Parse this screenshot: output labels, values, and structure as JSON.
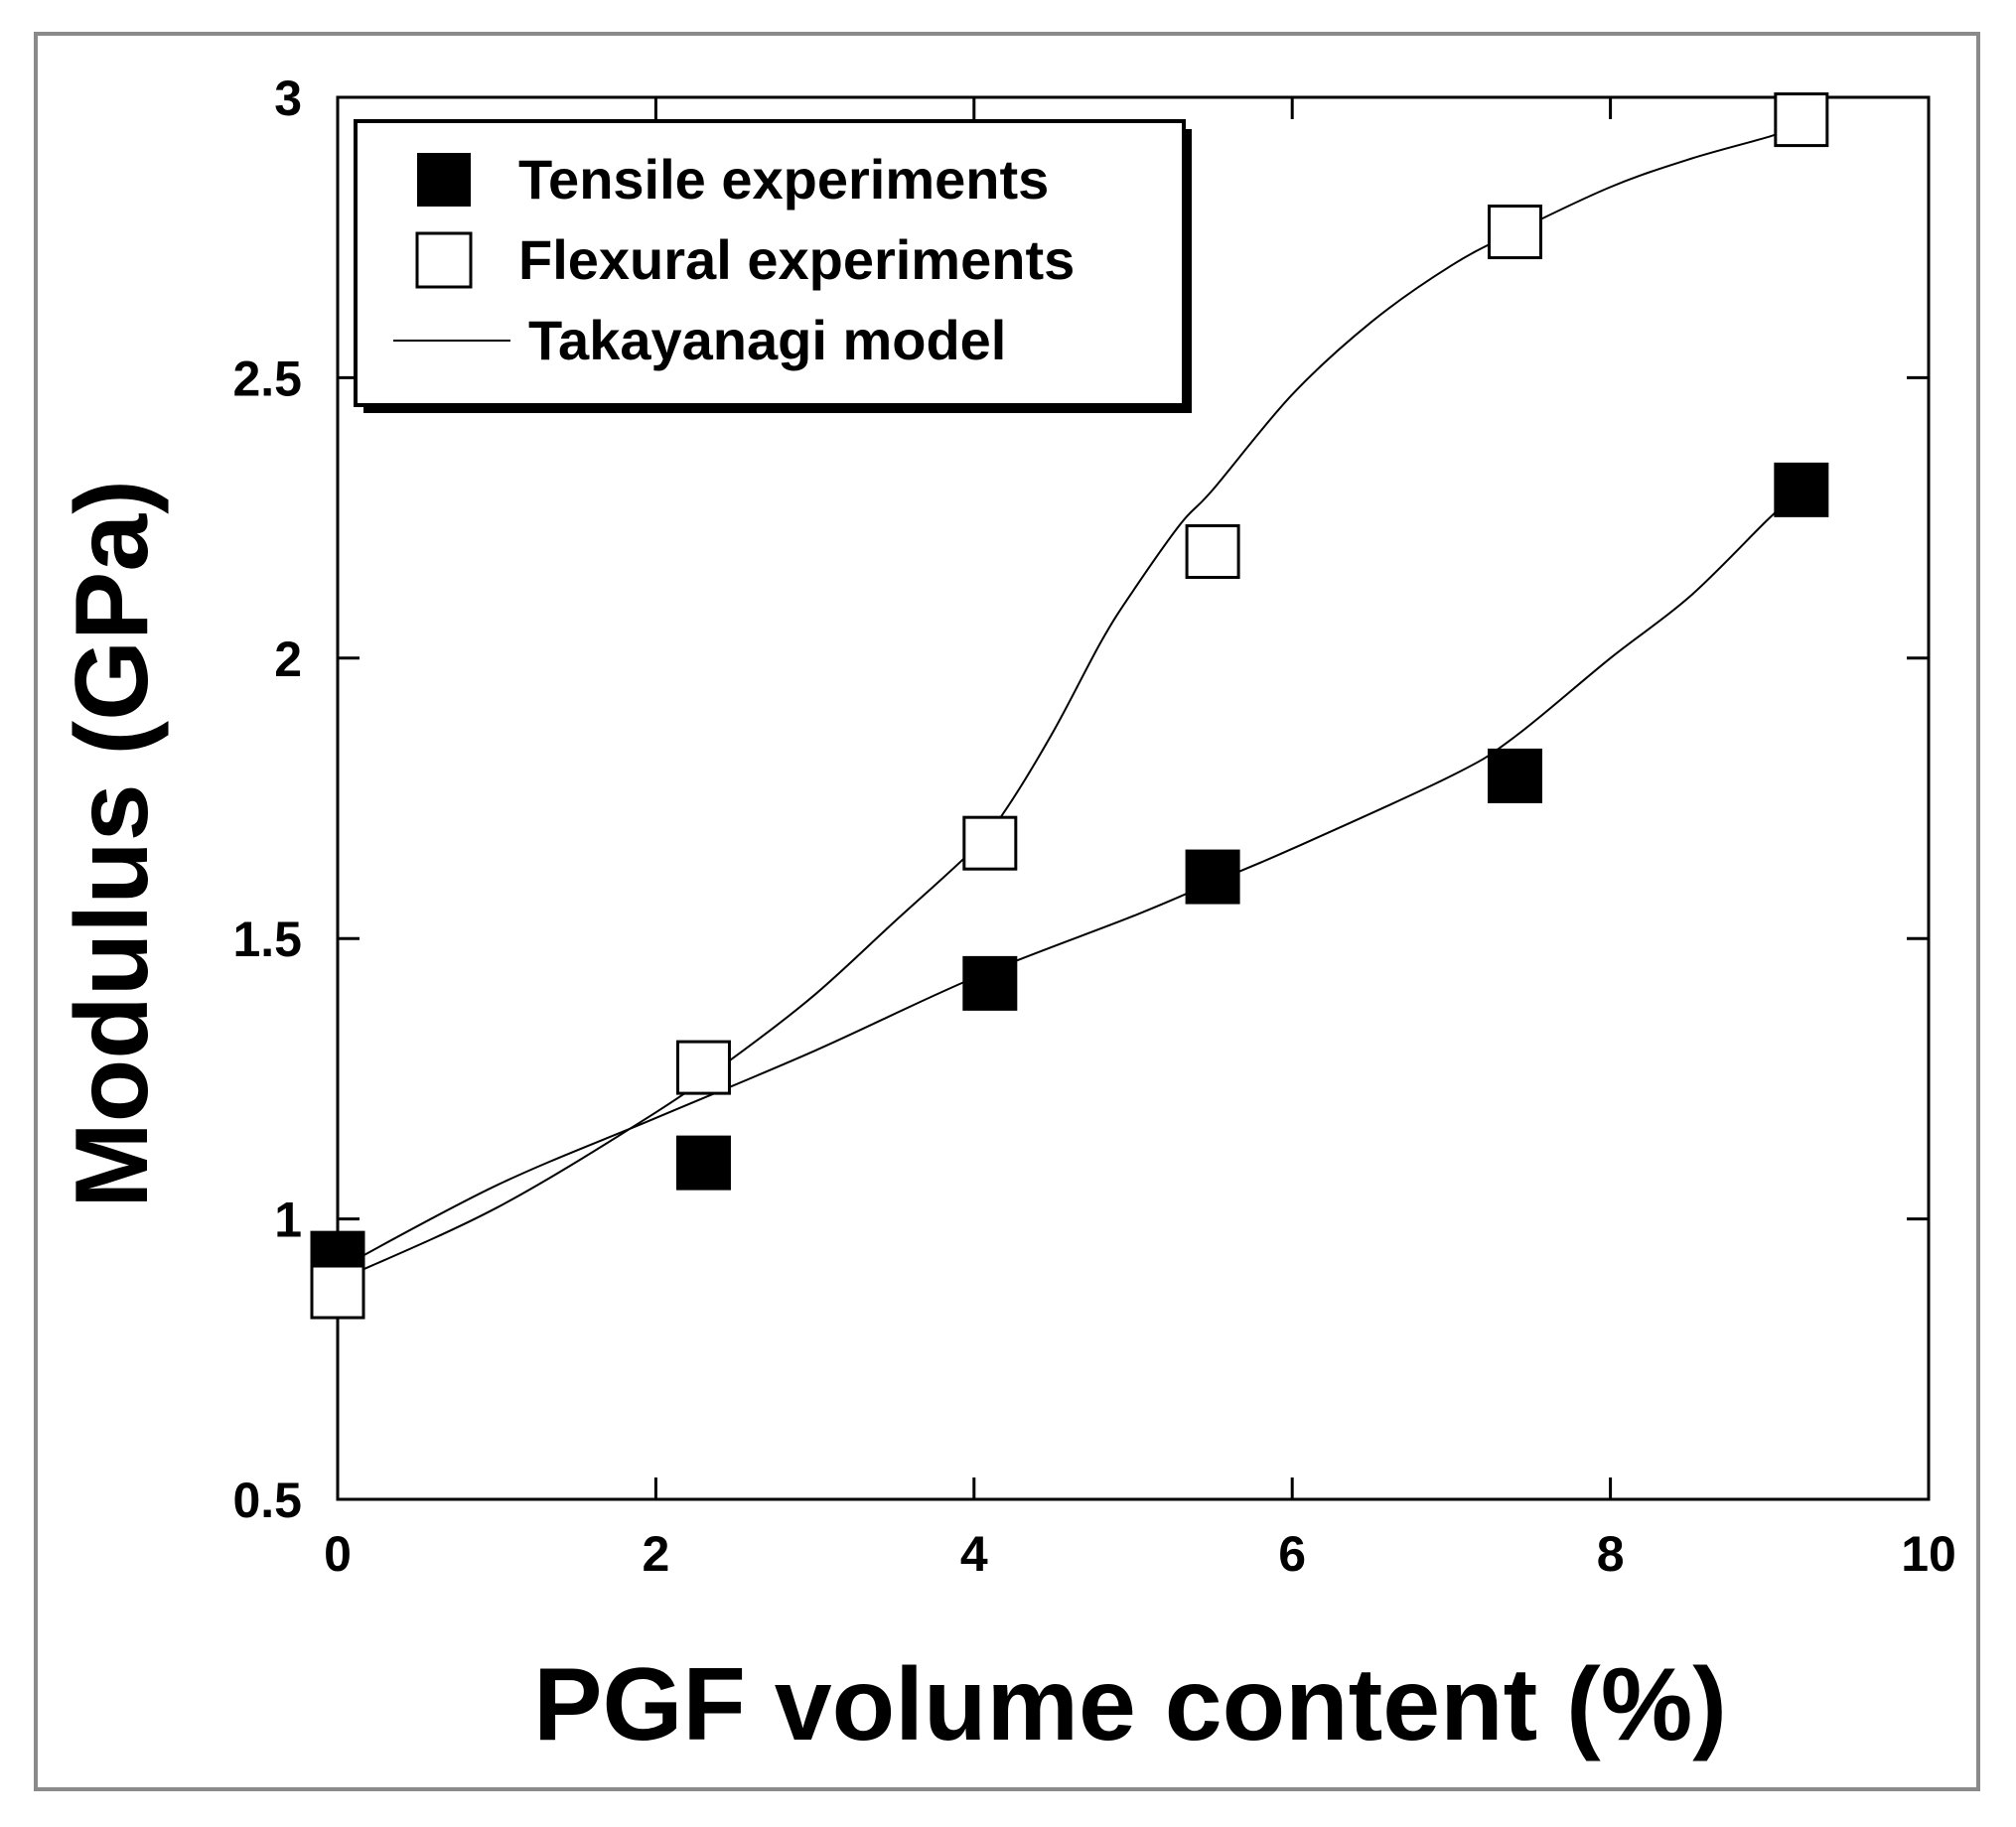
{
  "chart_data": {
    "type": "scatter",
    "title": "",
    "xlabel": "PGF volume content (%)",
    "ylabel": "Modulus (GPa)",
    "xlim": [
      0,
      10
    ],
    "ylim": [
      0.5,
      3
    ],
    "xticks": [
      "0",
      "2",
      "4",
      "6",
      "8",
      "10"
    ],
    "xtick_values": [
      0,
      2,
      4,
      6,
      8,
      10
    ],
    "yticks": [
      "0.5",
      "1",
      "1.5",
      "2",
      "2.5",
      "3"
    ],
    "ytick_values": [
      0.5,
      1,
      1.5,
      2,
      2.5,
      3
    ],
    "legend_position": "top-left",
    "series": [
      {
        "name": "Tensile experiments",
        "marker": "filled-square",
        "x": [
          0,
          2.3,
          4.1,
          5.5,
          7.4,
          9.2
        ],
        "y": [
          0.93,
          1.1,
          1.42,
          1.61,
          1.79,
          2.3
        ]
      },
      {
        "name": "Flexural experiments",
        "marker": "open-square",
        "x": [
          0,
          2.3,
          4.1,
          5.5,
          7.4,
          9.2
        ],
        "y": [
          0.87,
          1.27,
          1.67,
          2.19,
          2.76,
          2.96
        ]
      }
    ],
    "model_curves": [
      {
        "name": "Takayanagi model",
        "applies_to": "Tensile experiments",
        "x": [
          0,
          1,
          2,
          3,
          4,
          5,
          5.5,
          6,
          7,
          7.4,
          8,
          8.5,
          9,
          9.2
        ],
        "y": [
          0.91,
          1.06,
          1.18,
          1.3,
          1.43,
          1.54,
          1.6,
          1.66,
          1.79,
          1.86,
          2.0,
          2.11,
          2.25,
          2.3
        ]
      },
      {
        "name": "Takayanagi model (flexural)",
        "applies_to": "Flexural experiments",
        "x": [
          0,
          1,
          2,
          2.5,
          3,
          3.5,
          4,
          4.2,
          4.5,
          4.8,
          5,
          5.3,
          5.5,
          6,
          6.5,
          7,
          7.4,
          8,
          8.5,
          9,
          9.2
        ],
        "y": [
          0.89,
          1.02,
          1.19,
          1.29,
          1.4,
          1.53,
          1.66,
          1.73,
          1.87,
          2.03,
          2.12,
          2.24,
          2.3,
          2.47,
          2.6,
          2.7,
          2.76,
          2.84,
          2.89,
          2.93,
          2.95
        ]
      }
    ],
    "legend": [
      {
        "label": "Tensile experiments",
        "symbol": "filled-square"
      },
      {
        "label": "Flexural experiments",
        "symbol": "open-square"
      },
      {
        "label": "Takayanagi model",
        "symbol": "line"
      }
    ]
  },
  "colors": {
    "ink": "#000000",
    "frame": "#8a8a8a",
    "background": "#ffffff"
  }
}
